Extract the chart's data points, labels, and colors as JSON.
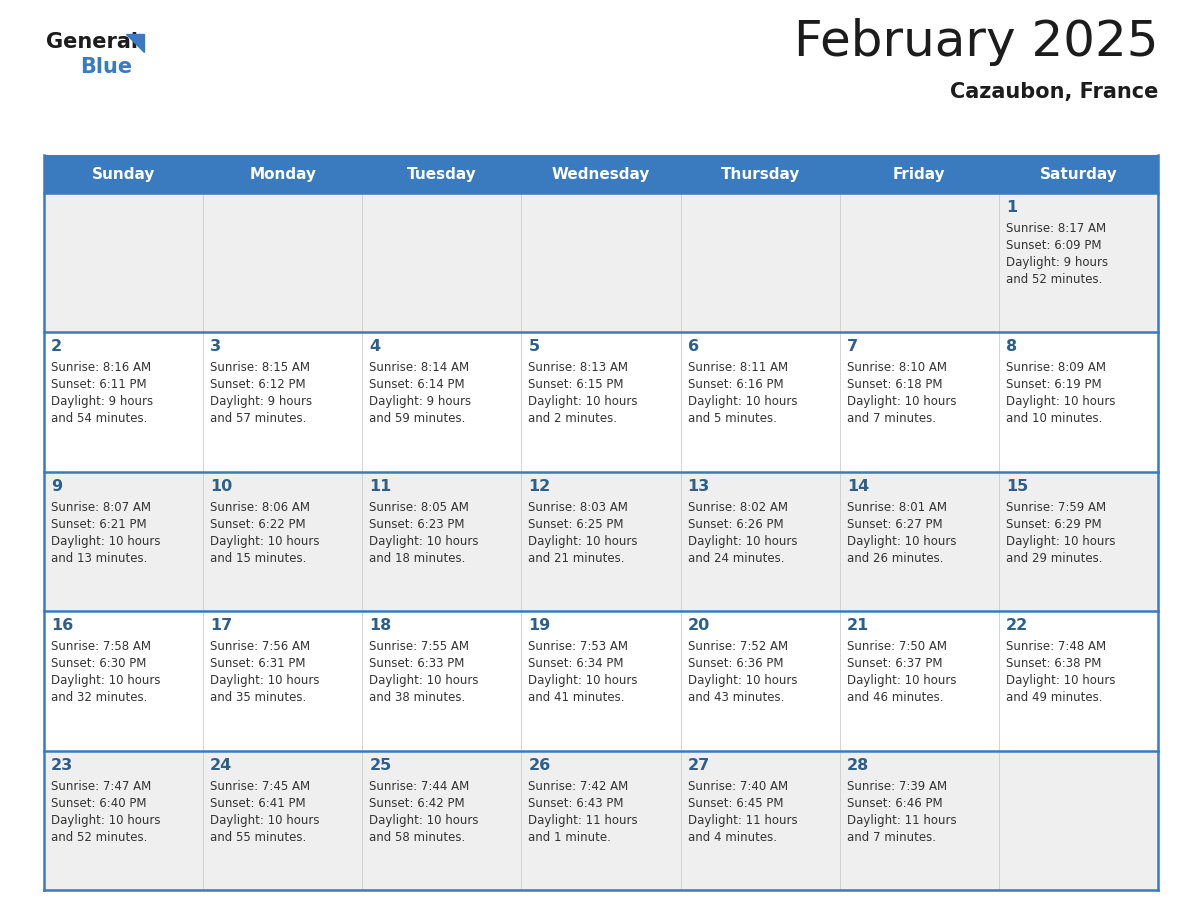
{
  "title": "February 2025",
  "subtitle": "Cazaubon, France",
  "header_color": "#3a7abf",
  "header_text_color": "#ffffff",
  "cell_bg_odd": "#efefef",
  "cell_bg_even": "#ffffff",
  "border_color": "#3a7abf",
  "text_color": "#333333",
  "day_num_color": "#2c5f8a",
  "day_names": [
    "Sunday",
    "Monday",
    "Tuesday",
    "Wednesday",
    "Thursday",
    "Friday",
    "Saturday"
  ],
  "days": [
    {
      "day": 1,
      "col": 6,
      "row": 0,
      "sunrise": "8:17 AM",
      "sunset": "6:09 PM",
      "daylight": "9 hours and 52 minutes"
    },
    {
      "day": 2,
      "col": 0,
      "row": 1,
      "sunrise": "8:16 AM",
      "sunset": "6:11 PM",
      "daylight": "9 hours and 54 minutes"
    },
    {
      "day": 3,
      "col": 1,
      "row": 1,
      "sunrise": "8:15 AM",
      "sunset": "6:12 PM",
      "daylight": "9 hours and 57 minutes"
    },
    {
      "day": 4,
      "col": 2,
      "row": 1,
      "sunrise": "8:14 AM",
      "sunset": "6:14 PM",
      "daylight": "9 hours and 59 minutes"
    },
    {
      "day": 5,
      "col": 3,
      "row": 1,
      "sunrise": "8:13 AM",
      "sunset": "6:15 PM",
      "daylight": "10 hours and 2 minutes"
    },
    {
      "day": 6,
      "col": 4,
      "row": 1,
      "sunrise": "8:11 AM",
      "sunset": "6:16 PM",
      "daylight": "10 hours and 5 minutes"
    },
    {
      "day": 7,
      "col": 5,
      "row": 1,
      "sunrise": "8:10 AM",
      "sunset": "6:18 PM",
      "daylight": "10 hours and 7 minutes"
    },
    {
      "day": 8,
      "col": 6,
      "row": 1,
      "sunrise": "8:09 AM",
      "sunset": "6:19 PM",
      "daylight": "10 hours and 10 minutes"
    },
    {
      "day": 9,
      "col": 0,
      "row": 2,
      "sunrise": "8:07 AM",
      "sunset": "6:21 PM",
      "daylight": "10 hours and 13 minutes"
    },
    {
      "day": 10,
      "col": 1,
      "row": 2,
      "sunrise": "8:06 AM",
      "sunset": "6:22 PM",
      "daylight": "10 hours and 15 minutes"
    },
    {
      "day": 11,
      "col": 2,
      "row": 2,
      "sunrise": "8:05 AM",
      "sunset": "6:23 PM",
      "daylight": "10 hours and 18 minutes"
    },
    {
      "day": 12,
      "col": 3,
      "row": 2,
      "sunrise": "8:03 AM",
      "sunset": "6:25 PM",
      "daylight": "10 hours and 21 minutes"
    },
    {
      "day": 13,
      "col": 4,
      "row": 2,
      "sunrise": "8:02 AM",
      "sunset": "6:26 PM",
      "daylight": "10 hours and 24 minutes"
    },
    {
      "day": 14,
      "col": 5,
      "row": 2,
      "sunrise": "8:01 AM",
      "sunset": "6:27 PM",
      "daylight": "10 hours and 26 minutes"
    },
    {
      "day": 15,
      "col": 6,
      "row": 2,
      "sunrise": "7:59 AM",
      "sunset": "6:29 PM",
      "daylight": "10 hours and 29 minutes"
    },
    {
      "day": 16,
      "col": 0,
      "row": 3,
      "sunrise": "7:58 AM",
      "sunset": "6:30 PM",
      "daylight": "10 hours and 32 minutes"
    },
    {
      "day": 17,
      "col": 1,
      "row": 3,
      "sunrise": "7:56 AM",
      "sunset": "6:31 PM",
      "daylight": "10 hours and 35 minutes"
    },
    {
      "day": 18,
      "col": 2,
      "row": 3,
      "sunrise": "7:55 AM",
      "sunset": "6:33 PM",
      "daylight": "10 hours and 38 minutes"
    },
    {
      "day": 19,
      "col": 3,
      "row": 3,
      "sunrise": "7:53 AM",
      "sunset": "6:34 PM",
      "daylight": "10 hours and 41 minutes"
    },
    {
      "day": 20,
      "col": 4,
      "row": 3,
      "sunrise": "7:52 AM",
      "sunset": "6:36 PM",
      "daylight": "10 hours and 43 minutes"
    },
    {
      "day": 21,
      "col": 5,
      "row": 3,
      "sunrise": "7:50 AM",
      "sunset": "6:37 PM",
      "daylight": "10 hours and 46 minutes"
    },
    {
      "day": 22,
      "col": 6,
      "row": 3,
      "sunrise": "7:48 AM",
      "sunset": "6:38 PM",
      "daylight": "10 hours and 49 minutes"
    },
    {
      "day": 23,
      "col": 0,
      "row": 4,
      "sunrise": "7:47 AM",
      "sunset": "6:40 PM",
      "daylight": "10 hours and 52 minutes"
    },
    {
      "day": 24,
      "col": 1,
      "row": 4,
      "sunrise": "7:45 AM",
      "sunset": "6:41 PM",
      "daylight": "10 hours and 55 minutes"
    },
    {
      "day": 25,
      "col": 2,
      "row": 4,
      "sunrise": "7:44 AM",
      "sunset": "6:42 PM",
      "daylight": "10 hours and 58 minutes"
    },
    {
      "day": 26,
      "col": 3,
      "row": 4,
      "sunrise": "7:42 AM",
      "sunset": "6:43 PM",
      "daylight": "11 hours and 1 minute"
    },
    {
      "day": 27,
      "col": 4,
      "row": 4,
      "sunrise": "7:40 AM",
      "sunset": "6:45 PM",
      "daylight": "11 hours and 4 minutes"
    },
    {
      "day": 28,
      "col": 5,
      "row": 4,
      "sunrise": "7:39 AM",
      "sunset": "6:46 PM",
      "daylight": "11 hours and 7 minutes"
    }
  ]
}
